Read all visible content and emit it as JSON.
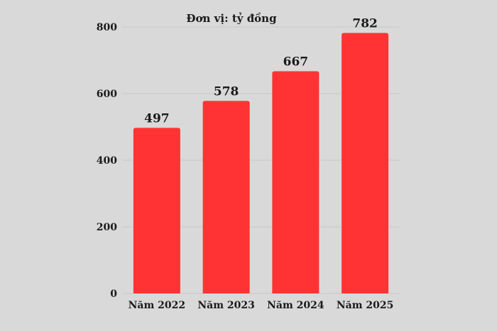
{
  "chart_data": {
    "type": "bar",
    "title": "Đơn vị: tỷ đồng",
    "categories": [
      "Năm 2022",
      "Năm 2023",
      "Năm 2024",
      "Năm 2025"
    ],
    "values": [
      497,
      578,
      667,
      782
    ],
    "value_labels": [
      "497",
      "578",
      "667",
      "782"
    ],
    "y_ticks": [
      0,
      200,
      400,
      600,
      800
    ],
    "ylim": [
      0,
      800
    ],
    "xlabel": "",
    "ylabel": "",
    "grid": true,
    "bar_color": "#ff3333",
    "background_color": "#d9d9d9"
  }
}
